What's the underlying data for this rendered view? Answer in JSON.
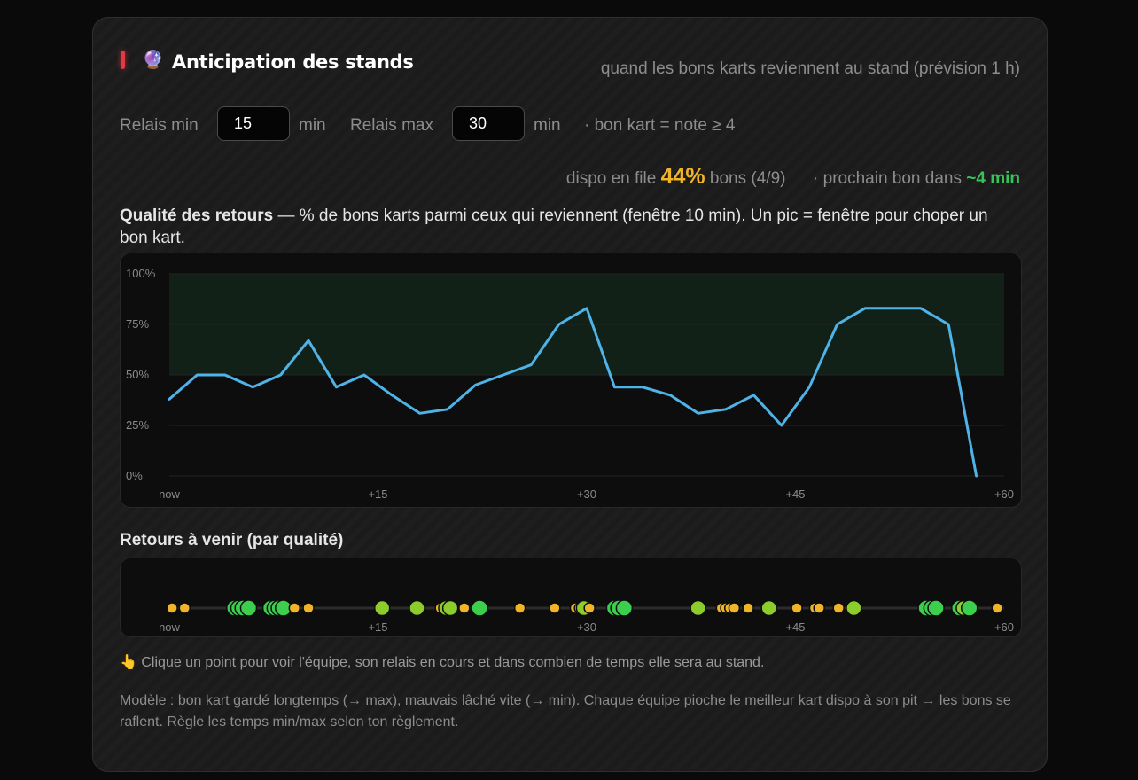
{
  "header": {
    "icon": "🔮",
    "icon_name": "crystal-ball-icon",
    "title": "Anticipation des stands",
    "subtitle": "quand les bons karts reviennent au stand (prévision 1 h)"
  },
  "controls": {
    "relais_min_label": "Relais min",
    "relais_min_value": "15",
    "relais_min_unit": "min",
    "relais_max_label": "Relais max",
    "relais_max_value": "30",
    "relais_max_unit": "min",
    "rule_note": "· bon kart = note ≥ 4"
  },
  "stats": {
    "dispo_prefix": "dispo en file",
    "dispo_pct": "44%",
    "dispo_suffix": "bons (4/9)",
    "next_prefix": "· prochain bon dans",
    "next_value": "~4 min"
  },
  "description": {
    "bold": "Qualité des retours",
    "rest": " — % de bons karts parmi ceux qui reviennent (fenêtre 10 min). Un pic = fenêtre pour choper un bon kart."
  },
  "chart_data": {
    "type": "line",
    "title": "",
    "xlabel": "",
    "ylabel": "",
    "xlim": [
      0,
      60
    ],
    "ylim": [
      0,
      100
    ],
    "yticks": [
      "0%",
      "25%",
      "50%",
      "75%",
      "100%"
    ],
    "xticks": [
      "now",
      "+15",
      "+30",
      "+45",
      "+60"
    ],
    "highlight_band": [
      50,
      100
    ],
    "grid": true,
    "series": [
      {
        "color": "#4fb3e8",
        "x": [
          0,
          2,
          4,
          6,
          8,
          10,
          12,
          14,
          16,
          18,
          20,
          22,
          24,
          26,
          28,
          30,
          32,
          34,
          36,
          38,
          40,
          42,
          44,
          46,
          48,
          50,
          52,
          54,
          56,
          58
        ],
        "y": [
          38,
          50,
          50,
          44,
          50,
          67,
          44,
          50,
          40,
          31,
          33,
          45,
          50,
          55,
          75,
          83,
          44,
          44,
          40,
          31,
          33,
          40,
          25,
          44,
          75,
          83,
          83,
          83,
          75,
          0
        ]
      }
    ]
  },
  "returns": {
    "title": "Retours à venir (par qualité)",
    "axis_ticks": [
      "now",
      "+15",
      "+30",
      "+45",
      "+60"
    ],
    "colors": {
      "good": "#3ccf4e",
      "ok": "#8ccc2b",
      "low": "#f0b429"
    },
    "points": [
      {
        "t": 0.2,
        "q": "low"
      },
      {
        "t": 1.1,
        "q": "low"
      },
      {
        "t": 4.7,
        "q": "good"
      },
      {
        "t": 5.0,
        "q": "good"
      },
      {
        "t": 5.3,
        "q": "good"
      },
      {
        "t": 5.7,
        "q": "good"
      },
      {
        "t": 7.3,
        "q": "good"
      },
      {
        "t": 7.6,
        "q": "good"
      },
      {
        "t": 7.9,
        "q": "good"
      },
      {
        "t": 8.2,
        "q": "good"
      },
      {
        "t": 9.0,
        "q": "low"
      },
      {
        "t": 10.0,
        "q": "low"
      },
      {
        "t": 15.3,
        "q": "ok"
      },
      {
        "t": 17.8,
        "q": "ok"
      },
      {
        "t": 19.5,
        "q": "low"
      },
      {
        "t": 19.9,
        "q": "ok"
      },
      {
        "t": 20.2,
        "q": "ok"
      },
      {
        "t": 21.2,
        "q": "low"
      },
      {
        "t": 22.3,
        "q": "good"
      },
      {
        "t": 25.2,
        "q": "low"
      },
      {
        "t": 27.7,
        "q": "low"
      },
      {
        "t": 29.2,
        "q": "low"
      },
      {
        "t": 29.5,
        "q": "low"
      },
      {
        "t": 29.8,
        "q": "ok"
      },
      {
        "t": 30.2,
        "q": "low"
      },
      {
        "t": 32.0,
        "q": "good"
      },
      {
        "t": 32.3,
        "q": "good"
      },
      {
        "t": 32.7,
        "q": "good"
      },
      {
        "t": 38.0,
        "q": "ok"
      },
      {
        "t": 39.7,
        "q": "low"
      },
      {
        "t": 40.0,
        "q": "low"
      },
      {
        "t": 40.3,
        "q": "low"
      },
      {
        "t": 40.6,
        "q": "low"
      },
      {
        "t": 41.6,
        "q": "low"
      },
      {
        "t": 43.1,
        "q": "ok"
      },
      {
        "t": 45.1,
        "q": "low"
      },
      {
        "t": 46.4,
        "q": "low"
      },
      {
        "t": 46.7,
        "q": "low"
      },
      {
        "t": 48.1,
        "q": "low"
      },
      {
        "t": 49.2,
        "q": "ok"
      },
      {
        "t": 54.4,
        "q": "good"
      },
      {
        "t": 54.8,
        "q": "good"
      },
      {
        "t": 55.1,
        "q": "good"
      },
      {
        "t": 56.8,
        "q": "good"
      },
      {
        "t": 57.1,
        "q": "ok"
      },
      {
        "t": 57.5,
        "q": "good"
      },
      {
        "t": 59.5,
        "q": "low"
      }
    ]
  },
  "hint": {
    "icon": "👆",
    "icon_name": "pointing-hand-icon",
    "text": "Clique un point pour voir l'équipe, son relais en cours et dans combien de temps elle sera au stand."
  },
  "model_note": "Modèle : bon kart gardé longtemps (→ max), mauvais lâché vite (→ min). Chaque équipe pioche le meilleur kart dispo à son pit → les bons se raflent. Règle les temps min/max selon ton règlement."
}
